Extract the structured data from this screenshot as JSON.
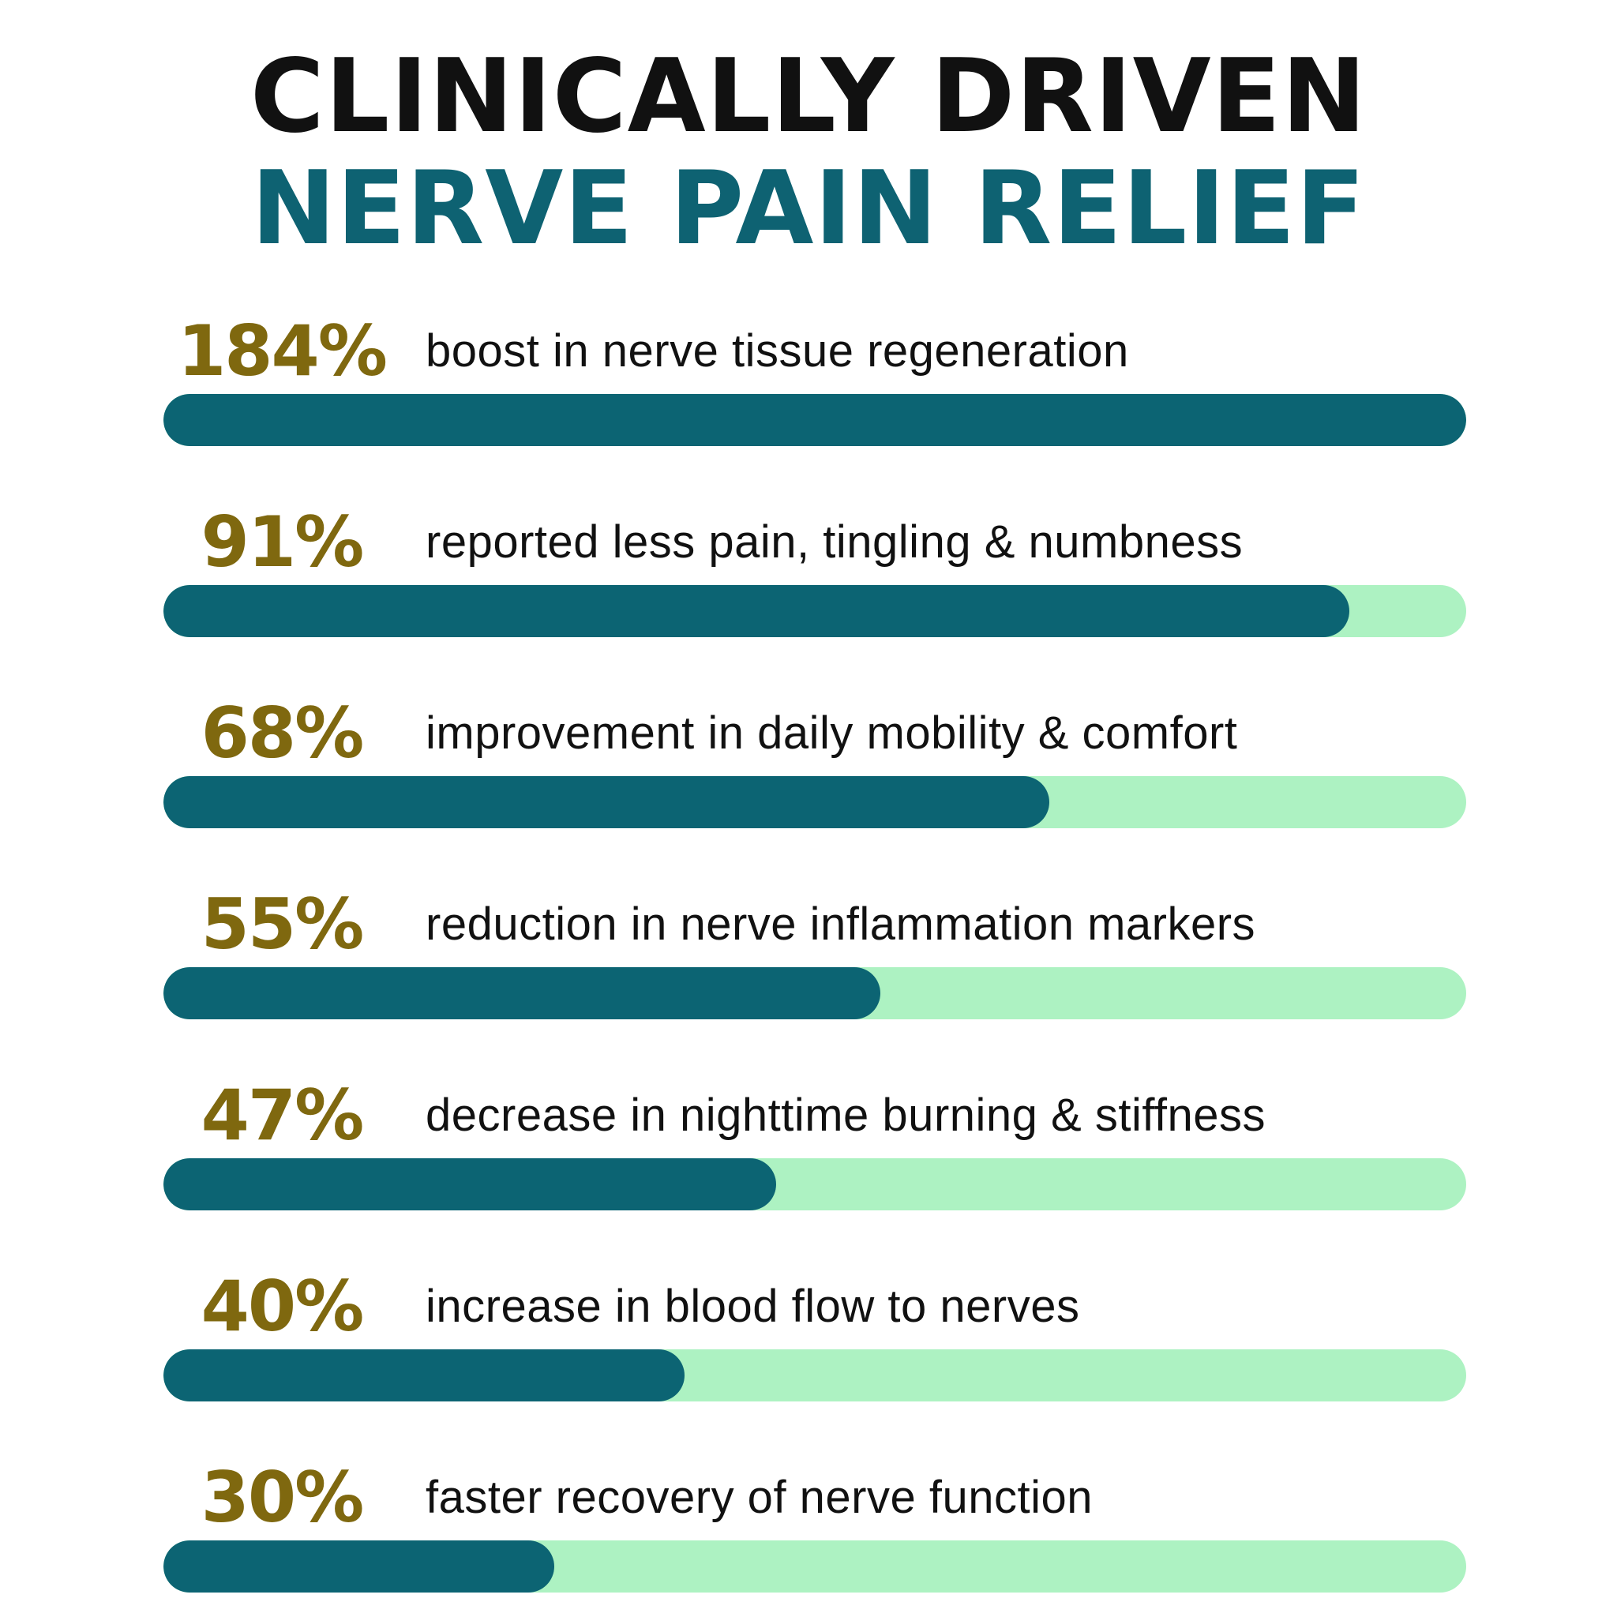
{
  "headline": {
    "line1": "CLINICALLY DRIVEN",
    "line2": "NERVE PAIN RELIEF"
  },
  "colors": {
    "headline_line1": "#111111",
    "headline_line2": "#0e6272",
    "stat_value": "#7f680f",
    "bar_fill": "#0c6473",
    "bar_track": "#adf2c2"
  },
  "stats": [
    {
      "value": "184%",
      "label": "boost in nerve tissue regeneration",
      "fill_fraction": 1.0
    },
    {
      "value": "91%",
      "label": "reported less pain, tingling & numbness",
      "fill_fraction": 0.91
    },
    {
      "value": "68%",
      "label": "improvement in daily mobility & comfort",
      "fill_fraction": 0.68
    },
    {
      "value": "55%",
      "label": "reduction in nerve inflammation markers",
      "fill_fraction": 0.55
    },
    {
      "value": "47%",
      "label": "decrease in nighttime burning & stiffness",
      "fill_fraction": 0.47
    },
    {
      "value": "40%",
      "label": "increase in blood flow to nerves",
      "fill_fraction": 0.4
    },
    {
      "value": "30%",
      "label": "faster recovery of nerve function",
      "fill_fraction": 0.3
    }
  ]
}
